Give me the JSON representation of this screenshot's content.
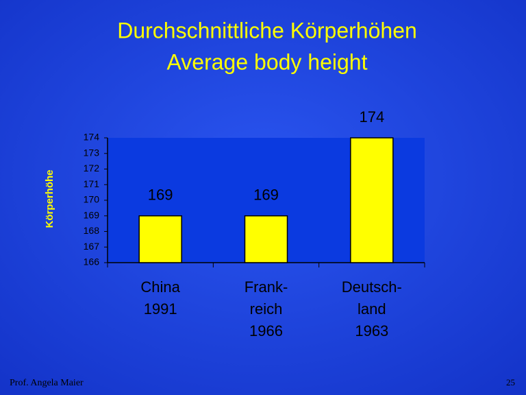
{
  "chart_data": {
    "type": "bar",
    "title": "Durchschnittliche Körperhöhen",
    "subtitle": "Average body height",
    "y_label": "Körperhöhe",
    "categories": [
      [
        "China",
        "1991"
      ],
      [
        "Frank-",
        "reich",
        "1966"
      ],
      [
        "Deutsch-",
        "land",
        "1963"
      ]
    ],
    "values": [
      169,
      169,
      174
    ],
    "color": "#ffff00",
    "ylim": [
      166,
      174
    ],
    "yticks": [
      166,
      167,
      168,
      169,
      170,
      171,
      172,
      173,
      174
    ]
  },
  "footer": {
    "author": "Prof. Angela Maier",
    "page": "25"
  }
}
